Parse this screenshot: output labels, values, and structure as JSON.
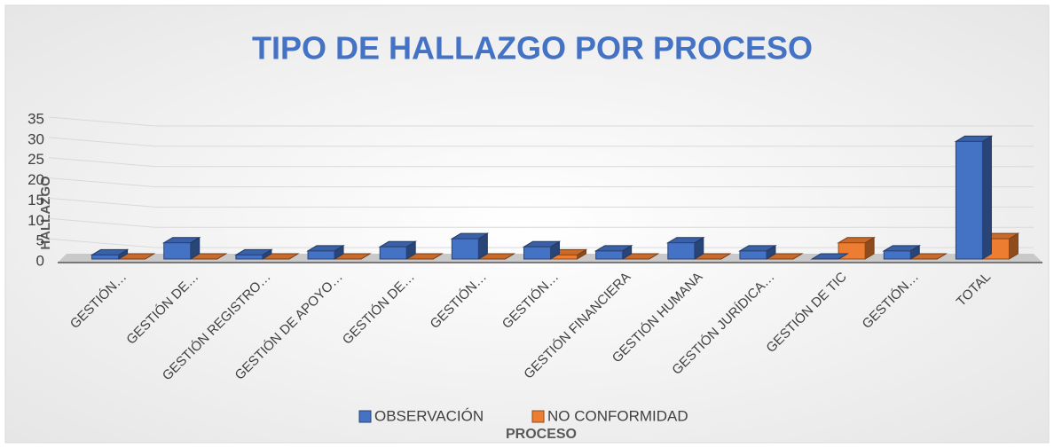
{
  "chart_data": {
    "type": "bar3d",
    "title": "TIPO DE HALLAZGO POR PROCESO",
    "x_label": "PROCESO",
    "y_label": "HALLAZGO",
    "categories": [
      "GESTIÓN…",
      "GESTIÓN DE…",
      "GESTIÓN REGISTRO…",
      "GESTIÓN DE APOYO…",
      "GESTIÓN DE…",
      "GESTIÓN…",
      "GESTIÓN…",
      "GESTIÓN FINANCIERA",
      "GESTIÓN HUMANA",
      "GESTIÓN JURÍDICA…",
      "GESTIÓN DE TIC",
      "GESTIÓN…",
      "TOTAL"
    ],
    "series": [
      {
        "name": "OBSERVACIÓN",
        "color": "#4472c4",
        "values": [
          1,
          4,
          1,
          2,
          3,
          5,
          3,
          2,
          4,
          2,
          0,
          2,
          29
        ]
      },
      {
        "name": "NO CONFORMIDAD",
        "color": "#ed7d31",
        "values": [
          0,
          0,
          0,
          0,
          0,
          0,
          1,
          0,
          0,
          0,
          4,
          0,
          5
        ]
      }
    ],
    "ylim": [
      0,
      35
    ],
    "yticks": [
      0,
      5,
      10,
      15,
      20,
      25,
      30,
      35
    ],
    "grid": true,
    "legend": "bottom"
  }
}
